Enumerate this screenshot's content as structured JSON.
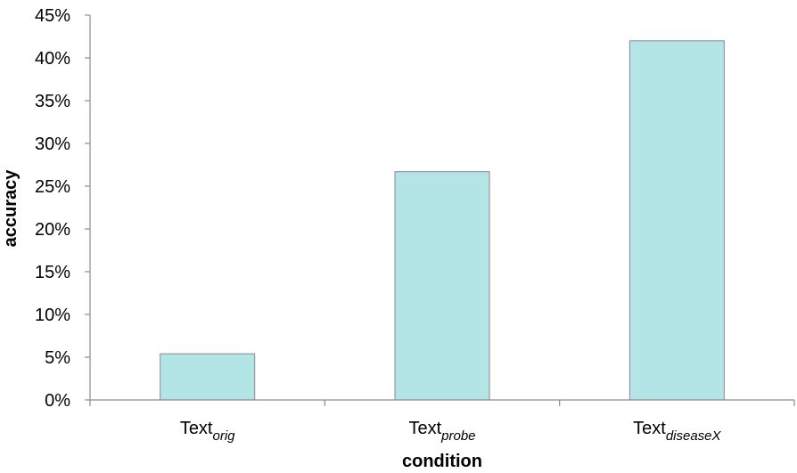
{
  "chart_data": {
    "type": "bar",
    "title": "",
    "xlabel": "condition",
    "ylabel": "accuracy",
    "categories": [
      {
        "base": "Text",
        "sub": "orig"
      },
      {
        "base": "Text",
        "sub": "probe"
      },
      {
        "base": "Text",
        "sub": "diseaseX"
      }
    ],
    "values": [
      5.4,
      26.7,
      42.0
    ],
    "ylim": [
      0,
      45
    ],
    "yticks": [
      "0%",
      "5%",
      "10%",
      "15%",
      "20%",
      "25%",
      "30%",
      "35%",
      "40%",
      "45%"
    ],
    "grid": false,
    "legend": "none",
    "colors": {
      "bar_fill": "#b3e5e6",
      "bar_stroke": "#8a8a8a",
      "axis": "#8c8c8c"
    }
  }
}
